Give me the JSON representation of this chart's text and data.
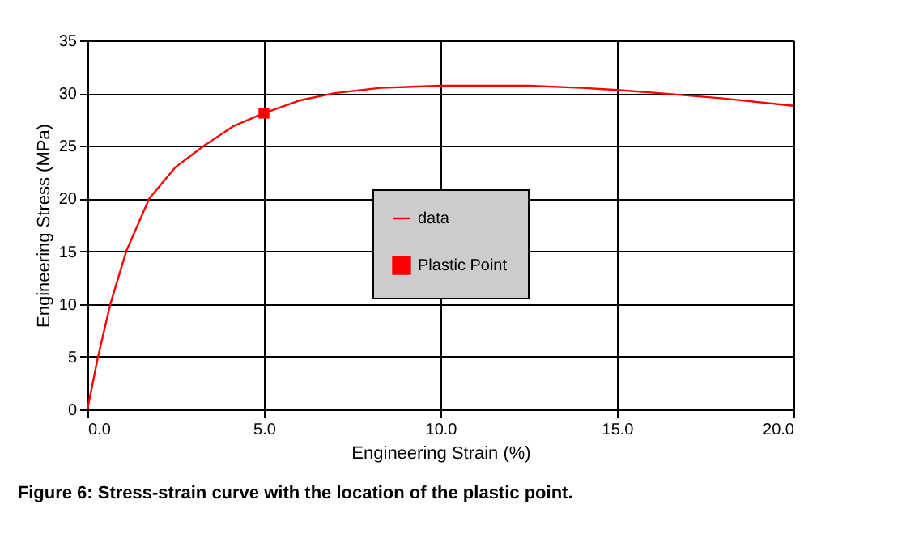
{
  "chart_data": {
    "type": "line",
    "title": "Figure 6: Stress-strain curve with the location of the plastic point.",
    "xlabel": "Engineering Strain (%)",
    "ylabel": "Engineering Stress (MPa)",
    "series": [
      {
        "name": "data",
        "color": "#ff0000",
        "marker": "none",
        "x": [
          0,
          0.3,
          0.65,
          1.1,
          1.75,
          2.5,
          3.3,
          4.15,
          5,
          6,
          7,
          8.3,
          10,
          12.5,
          14,
          15,
          16.2,
          18,
          20
        ],
        "values": [
          0,
          5,
          10,
          15,
          20,
          23,
          25,
          26.9,
          28.1,
          29.3,
          30,
          30.5,
          30.7,
          30.7,
          30.5,
          30.3,
          30,
          29.5,
          28.8
        ]
      },
      {
        "name": "Plastic Point",
        "type": "scatter",
        "color": "#ff0000",
        "marker": "square",
        "x": [
          5.0
        ],
        "values": [
          28.1
        ]
      }
    ],
    "xlim": [
      0,
      20
    ],
    "xticks": [
      {
        "value": 0,
        "label": "0.0"
      },
      {
        "value": 5,
        "label": "5.0"
      },
      {
        "value": 10,
        "label": "10.0"
      },
      {
        "value": 15,
        "label": "15.0"
      },
      {
        "value": 20,
        "label": "20.0"
      }
    ],
    "ylim": [
      0,
      35
    ],
    "yticks": [
      0,
      5,
      10,
      15,
      20,
      25,
      30,
      35
    ],
    "grid": true,
    "legend": "center"
  }
}
